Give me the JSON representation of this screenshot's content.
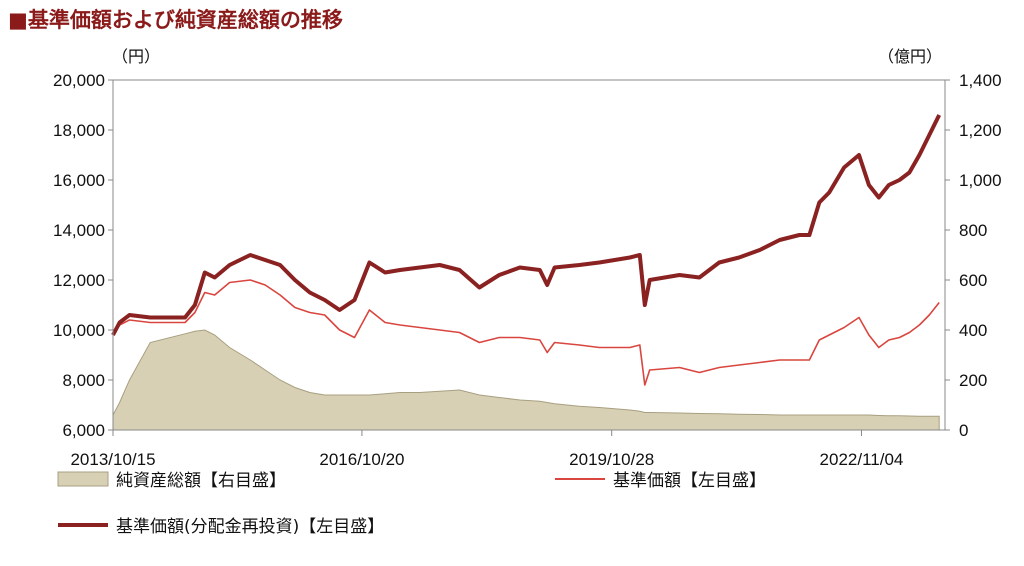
{
  "title": "■基準価額および純資産総額の推移",
  "chart_data": {
    "type": "line",
    "title": "■基準価額および純資産総額の推移",
    "left_unit": "（円）",
    "right_unit": "（億円）",
    "ylim_left": [
      6000,
      20000
    ],
    "ylim_right": [
      0,
      1400
    ],
    "yticks_left": [
      "6,000",
      "8,000",
      "10,000",
      "12,000",
      "14,000",
      "16,000",
      "18,000",
      "20,000"
    ],
    "yticks_right": [
      "0",
      "200",
      "400",
      "600",
      "800",
      "1,000",
      "1,200",
      "1,400"
    ],
    "xlim": [
      2013.79,
      2023.85
    ],
    "xticks": [
      {
        "label": "2013/10/15",
        "x": 2013.79
      },
      {
        "label": "2016/10/20",
        "x": 2016.8
      },
      {
        "label": "2019/10/28",
        "x": 2019.82
      },
      {
        "label": "2022/11/04",
        "x": 2022.84
      }
    ],
    "x": [
      2013.79,
      2013.87,
      2013.99,
      2014.24,
      2014.66,
      2014.78,
      2014.9,
      2015.02,
      2015.2,
      2015.45,
      2015.63,
      2015.81,
      2015.99,
      2016.17,
      2016.35,
      2016.53,
      2016.71,
      2016.89,
      2017.08,
      2017.26,
      2017.5,
      2017.74,
      2017.98,
      2018.22,
      2018.46,
      2018.71,
      2018.95,
      2019.04,
      2019.13,
      2019.43,
      2019.67,
      2020.04,
      2020.16,
      2020.22,
      2020.28,
      2020.64,
      2020.88,
      2021.12,
      2021.36,
      2021.61,
      2021.85,
      2022.09,
      2022.21,
      2022.33,
      2022.45,
      2022.63,
      2022.81,
      2022.93,
      2023.05,
      2023.17,
      2023.3,
      2023.42,
      2023.54,
      2023.66,
      2023.78
    ],
    "series": [
      {
        "name": "純資産総額【右目盛】",
        "axis": "right",
        "style": "area",
        "color": "#d8d0b4",
        "values": [
          60,
          110,
          200,
          350,
          385,
          395,
          400,
          380,
          330,
          280,
          240,
          200,
          170,
          150,
          140,
          140,
          140,
          140,
          145,
          150,
          150,
          155,
          160,
          140,
          130,
          120,
          115,
          110,
          105,
          95,
          90,
          80,
          75,
          70,
          70,
          68,
          66,
          65,
          63,
          62,
          60,
          60,
          60,
          60,
          60,
          60,
          60,
          60,
          58,
          57,
          57,
          56,
          55,
          55,
          55
        ]
      },
      {
        "name": "基準価額【左目盛】",
        "axis": "left",
        "style": "line",
        "color": "#d9463f",
        "values": [
          9800,
          10200,
          10400,
          10300,
          10300,
          10700,
          11500,
          11400,
          11900,
          12000,
          11800,
          11400,
          10900,
          10700,
          10600,
          10000,
          9700,
          10800,
          10300,
          10200,
          10100,
          10000,
          9900,
          9500,
          9700,
          9700,
          9600,
          9100,
          9500,
          9400,
          9300,
          9300,
          9400,
          7800,
          8400,
          8500,
          8300,
          8500,
          8600,
          8700,
          8800,
          8800,
          8800,
          9600,
          9800,
          10100,
          10500,
          9800,
          9300,
          9600,
          9700,
          9900,
          10200,
          10600,
          11100
        ]
      },
      {
        "name": "基準価額(分配金再投資)【左目盛】",
        "axis": "left",
        "style": "thick",
        "color": "#8b2222",
        "values": [
          9800,
          10300,
          10600,
          10500,
          10500,
          11000,
          12300,
          12100,
          12600,
          13000,
          12800,
          12600,
          12000,
          11500,
          11200,
          10800,
          11200,
          12700,
          12300,
          12400,
          12500,
          12600,
          12400,
          11700,
          12200,
          12500,
          12400,
          11800,
          12500,
          12600,
          12700,
          12900,
          13000,
          11000,
          12000,
          12200,
          12100,
          12700,
          12900,
          13200,
          13600,
          13800,
          13800,
          15100,
          15500,
          16500,
          17000,
          15800,
          15300,
          15800,
          16000,
          16300,
          17000,
          17800,
          18600
        ]
      }
    ]
  }
}
